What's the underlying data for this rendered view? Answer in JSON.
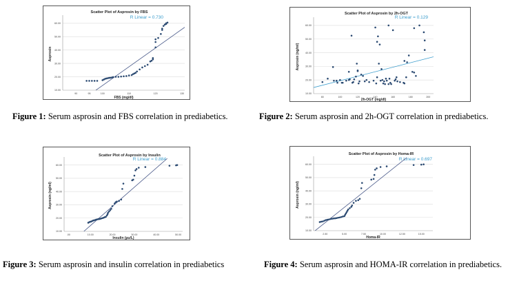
{
  "figures": [
    {
      "caption_bold": "Figure 1:",
      "caption_text": " Serum asprosin and FBS correlation in prediabetics."
    },
    {
      "caption_bold": "Figure 2:",
      "caption_text": " Serum asprosin and 2h-OGT correlation in prediabetics."
    },
    {
      "caption_bold": "Figure 3:",
      "caption_text": " Serum asprosin and insulin correlation in prediabetics"
    },
    {
      "caption_bold": "Figure 4:",
      "caption_text": " Serum asprosin and HOMA-IR correlation in prediabetics."
    }
  ],
  "chart_data": [
    {
      "type": "scatter",
      "title": "Scatter Plot of Asprosin by FBS",
      "xlabel": "FBS (mg/dl)",
      "ylabel": "Asprosin",
      "xlim": [
        85,
        131
      ],
      "ylim": [
        10,
        64
      ],
      "xticks": [
        90,
        95,
        100,
        110,
        120,
        130
      ],
      "xtick_labels": [
        "90",
        "95",
        "100",
        "110",
        "120",
        "130"
      ],
      "yticks": [
        10,
        20,
        30,
        40,
        50,
        60
      ],
      "ytick_labels": [
        "10.00",
        "20.00",
        "30.00",
        "40.00",
        "50.00",
        "60.00"
      ],
      "grid": true,
      "fit_line": {
        "label": "R Linear = 0.730",
        "x": [
          97.5,
          131
        ],
        "y": [
          10,
          57
        ],
        "color": "#4a5a8a"
      },
      "point_color": "#2b4a72",
      "x": [
        94,
        95,
        96,
        97,
        98,
        100,
        100.5,
        101,
        101.5,
        102,
        102.5,
        103,
        103.5,
        104,
        105,
        106,
        107,
        108,
        109,
        110,
        111,
        111.5,
        112,
        112.5,
        113,
        114,
        115,
        116,
        117,
        118,
        118.5,
        119,
        119,
        120,
        120,
        120,
        121,
        122,
        122.5,
        122.5,
        123,
        123.5,
        124,
        124,
        124.5
      ],
      "y": [
        17,
        17,
        17,
        17,
        17,
        17.5,
        18,
        18.5,
        18.8,
        19,
        19.2,
        19.3,
        19.5,
        19.8,
        20,
        20,
        20.2,
        20.4,
        20.6,
        21,
        21.3,
        22,
        22.5,
        23,
        24,
        25.5,
        27,
        28,
        29,
        31.5,
        32,
        33,
        34,
        42,
        46,
        48,
        49,
        52,
        55,
        56,
        58,
        59,
        59.5,
        60,
        60.5
      ]
    },
    {
      "type": "scatter",
      "title": "Scatter Plot of Asprosin by 2h-OGT",
      "xlabel": "2h-OGT (mg/dl)",
      "ylabel": "Asprosin (ng/ml)",
      "xlim": [
        70,
        206
      ],
      "ylim": [
        10,
        64
      ],
      "xticks": [
        80,
        100,
        120,
        140,
        160,
        180,
        200
      ],
      "xtick_labels": [
        "80",
        "100",
        "120",
        "140",
        "160",
        "180",
        "200"
      ],
      "yticks": [
        10,
        20,
        30,
        40,
        50,
        60
      ],
      "ytick_labels": [
        "10.00",
        "20.00",
        "30.00",
        "40.00",
        "50.00",
        "60.00"
      ],
      "grid": true,
      "fit_line": {
        "label": "R Linear = 0.129",
        "x": [
          70,
          206
        ],
        "y": [
          14.5,
          37
        ],
        "color": "#3a9ccc"
      },
      "point_color": "#2b4a72",
      "x": [
        80,
        86,
        92,
        93,
        97,
        100,
        103,
        107,
        110,
        111,
        113,
        114,
        115,
        116,
        118,
        119,
        120,
        121,
        122,
        124,
        126,
        128,
        130,
        133,
        138,
        140,
        141,
        142,
        143,
        144,
        145,
        146,
        147,
        148,
        149,
        150,
        151,
        152,
        153,
        155,
        156,
        157,
        158,
        160,
        162,
        163,
        164,
        165,
        168,
        172,
        173,
        175,
        176,
        178,
        182,
        184,
        186,
        190,
        195,
        196,
        196,
        155,
        173,
        184,
        110,
        120,
        142,
        96,
        102
      ],
      "y": [
        18.5,
        21,
        29.5,
        19.5,
        18,
        20,
        18,
        19.5,
        20,
        20.5,
        52.5,
        18,
        18.5,
        20.5,
        22.5,
        32,
        26.5,
        17.5,
        19,
        24,
        23,
        19,
        20,
        18.5,
        19.5,
        58.5,
        17.5,
        48,
        52,
        32,
        46,
        19.5,
        28,
        20,
        17.5,
        19,
        17,
        21,
        19.5,
        17,
        21,
        18,
        17,
        56.5,
        19.5,
        20.5,
        22,
        19,
        18.5,
        18,
        34,
        22,
        33,
        38,
        26,
        25.5,
        23,
        60,
        55,
        49,
        42,
        60,
        17.5,
        58,
        26,
        27,
        22,
        19.5,
        18
      ]
    },
    {
      "type": "scatter",
      "title": "Scatter Plot of Asprosin by Insulin",
      "xlabel": "Insulin (µu/L)",
      "ylabel": "Asprosin (ng/ml)",
      "xlim": [
        -2,
        52
      ],
      "ylim": [
        10,
        64
      ],
      "xticks": [
        0,
        10,
        20,
        30,
        40,
        50
      ],
      "xtick_labels": [
        ".00",
        "10.00",
        "20.00",
        "30.00",
        "40.00",
        "50.00"
      ],
      "yticks": [
        10,
        20,
        30,
        40,
        50,
        60
      ],
      "ytick_labels": [
        "10.00",
        "20.00",
        "30.00",
        "40.00",
        "50.00",
        "60.00"
      ],
      "grid": true,
      "fit_line": {
        "label": "R Linear = 0.884",
        "x": [
          7,
          45
        ],
        "y": [
          10,
          65
        ],
        "color": "#4a5a8a"
      },
      "point_color": "#2b4a72",
      "x": [
        9,
        9.5,
        10,
        10.5,
        11,
        11.5,
        12,
        12.5,
        13,
        13.5,
        14,
        14.5,
        15,
        15.5,
        16,
        16.5,
        17,
        17.5,
        17.8,
        18,
        18.5,
        19,
        19.5,
        20,
        21,
        21.5,
        22,
        23,
        24,
        24.5,
        25,
        29,
        29.5,
        30,
        30.5,
        31,
        32,
        35,
        46,
        49,
        49.5
      ],
      "y": [
        16.5,
        17,
        17.3,
        17.5,
        18,
        18.3,
        18.5,
        18.8,
        19,
        19.2,
        19.3,
        19.5,
        19.8,
        20,
        20.3,
        20.7,
        21,
        22,
        23,
        24,
        25,
        26,
        27,
        29,
        31,
        32,
        32.5,
        33,
        34,
        42,
        46,
        48.5,
        49,
        52,
        56,
        57,
        58,
        58.5,
        59.5,
        59.8,
        60
      ]
    },
    {
      "type": "scatter",
      "title": "Scatter Plot of Asprosin by Homa-IR",
      "xlabel": "Homa-IR",
      "ylabel": "Asprosin (ng/ml)",
      "xlim": [
        1,
        16.5
      ],
      "ylim": [
        10,
        64
      ],
      "xticks": [
        2.5,
        5,
        7.5,
        10,
        12.5,
        15
      ],
      "xtick_labels": [
        "2.50",
        "5.00",
        "7.50",
        "10.00",
        "12.50",
        "15.00"
      ],
      "yticks": [
        10,
        20,
        30,
        40,
        50,
        60
      ],
      "ytick_labels": [
        "10.00",
        "20.00",
        "30.00",
        "40.00",
        "50.00",
        "60.00"
      ],
      "grid": true,
      "fit_line": {
        "label": "R Linear = 0.697",
        "x": [
          1.2,
          13.3
        ],
        "y": [
          10,
          66
        ],
        "color": "#4a5a8a"
      },
      "point_color": "#2b4a72",
      "x": [
        1.8,
        2.0,
        2.2,
        2.4,
        2.6,
        2.8,
        3.0,
        3.2,
        3.4,
        3.6,
        3.8,
        4.0,
        4.2,
        4.4,
        4.6,
        4.8,
        5.0,
        5.1,
        5.2,
        5.3,
        5.4,
        5.5,
        5.7,
        5.9,
        6.0,
        6.2,
        6.5,
        6.8,
        7.0,
        7.2,
        7.3,
        8.5,
        8.8,
        8.9,
        9.0,
        9.2,
        9.7,
        10.5,
        14.0,
        15.0,
        15.3
      ],
      "y": [
        16.5,
        16.8,
        17,
        17.5,
        18,
        18.3,
        18.5,
        18.8,
        19,
        19.2,
        19.3,
        19.5,
        19.8,
        20,
        20.3,
        20.7,
        21,
        22,
        23,
        24,
        25,
        26,
        27,
        28,
        29,
        31,
        32.5,
        33,
        34,
        42,
        46,
        48.5,
        49,
        52,
        56,
        57,
        58,
        58.5,
        59.5,
        59.8,
        60
      ]
    }
  ]
}
